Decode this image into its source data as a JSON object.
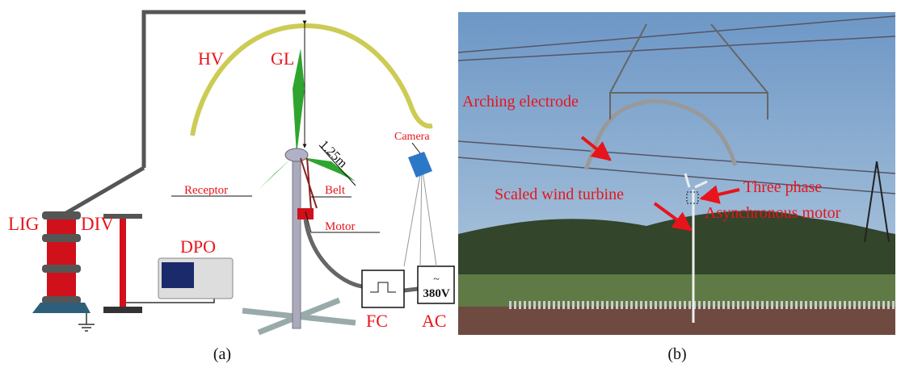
{
  "panel_a": {
    "caption": "(a)",
    "labels": {
      "hv": "HV",
      "gl": "GL",
      "length": "1.25m",
      "camera": "Camera",
      "receptor": "Receptor",
      "belt": "Belt",
      "motor": "Motor",
      "lig": "LIG",
      "div": "DIV",
      "dpo": "DPO",
      "fc": "FC",
      "ac": "AC",
      "ac_symbol": "~",
      "voltage": "380V"
    }
  },
  "panel_b": {
    "caption": "(b)",
    "labels": {
      "electrode": "Arching electrode",
      "motor_line1": "Three phase",
      "motor_line2": "Asynchronous motor",
      "turbine": "Scaled wind turbine"
    }
  }
}
